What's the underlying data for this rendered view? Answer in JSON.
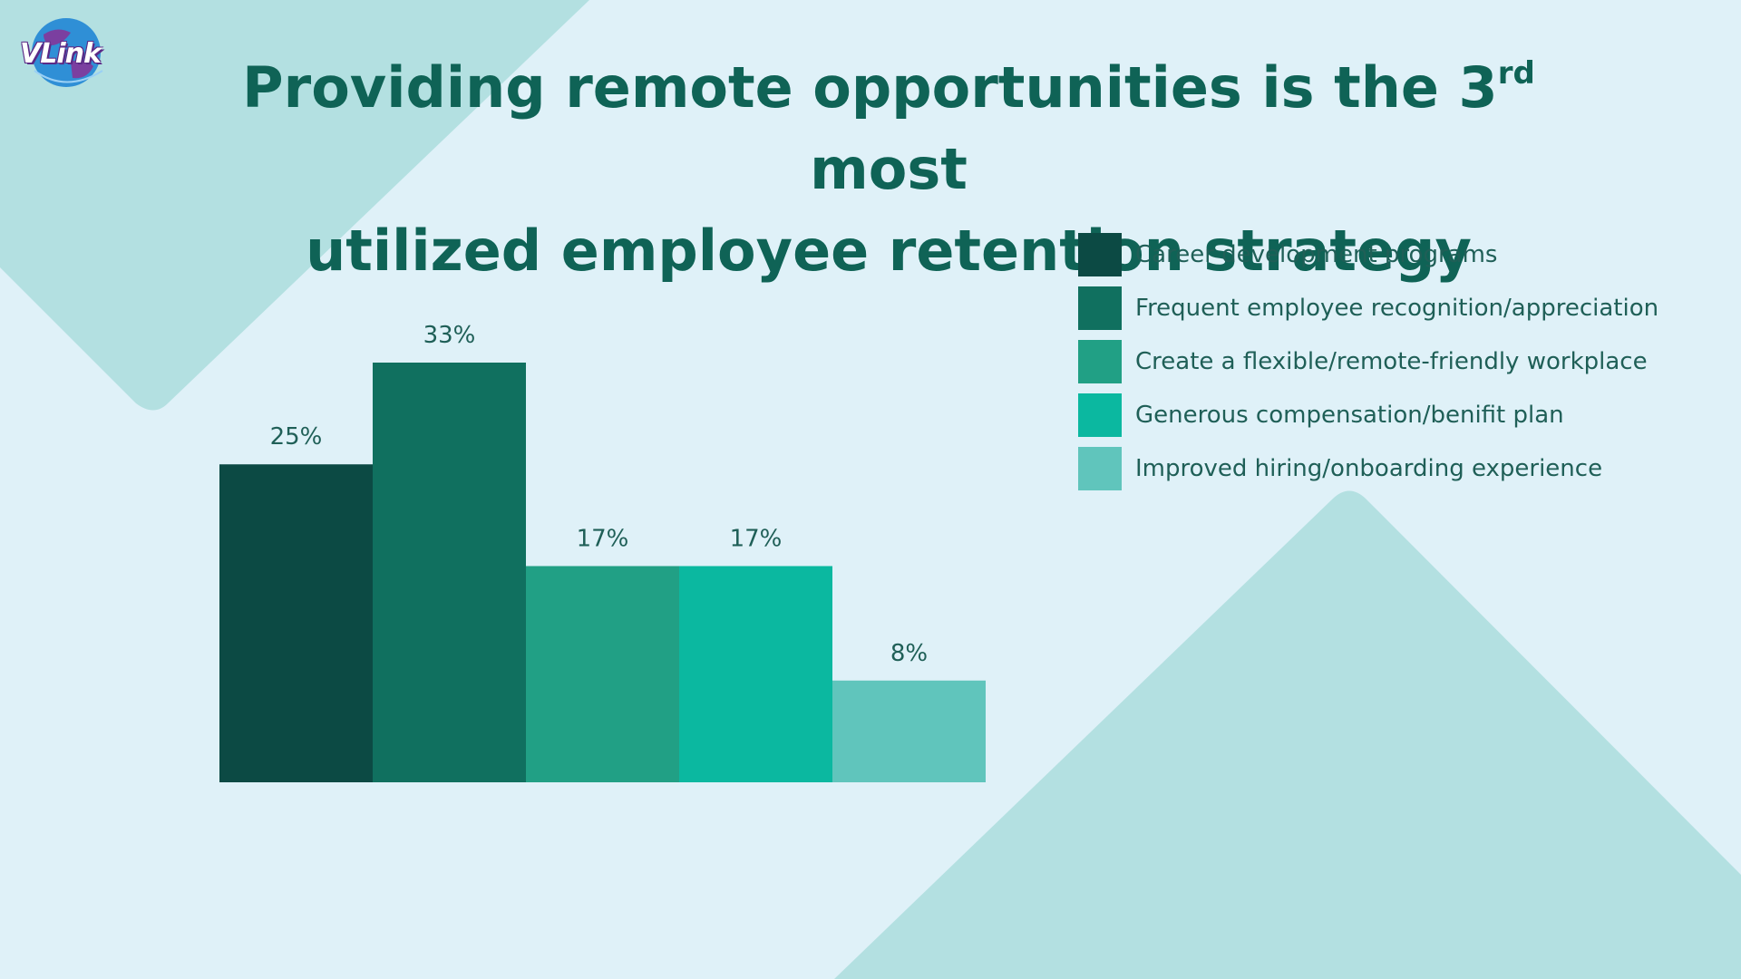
{
  "header": {
    "logo_text": "VLink",
    "title_line1_pre": "Providing remote opportunities is the 3",
    "title_sup": "rd",
    "title_line1_post": " most",
    "title_line2": "utilized employee retention strategy"
  },
  "colors": {
    "background": "#dff1f8",
    "decor_triangle": "#b3e0e1",
    "title": "#0f6356"
  },
  "chart_data": {
    "type": "bar",
    "title": "Providing remote opportunities is the 3rd most utilized employee retention strategy",
    "categories": [
      "Career development programs",
      "Frequent employee recognition/appreciation",
      "Create a flexible/remote-friendly workplace",
      "Generous compensation/benifit plan",
      "Improved hiring/onboarding experience"
    ],
    "values": [
      25,
      33,
      17,
      17,
      8
    ],
    "value_labels": [
      "25%",
      "33%",
      "17%",
      "17%",
      "8%"
    ],
    "colors": [
      "#0c4a44",
      "#10705f",
      "#21a085",
      "#0bb8a0",
      "#60c5bc"
    ],
    "unit": "%",
    "ylim": [
      0,
      33
    ],
    "grid": false,
    "legend": "right"
  }
}
